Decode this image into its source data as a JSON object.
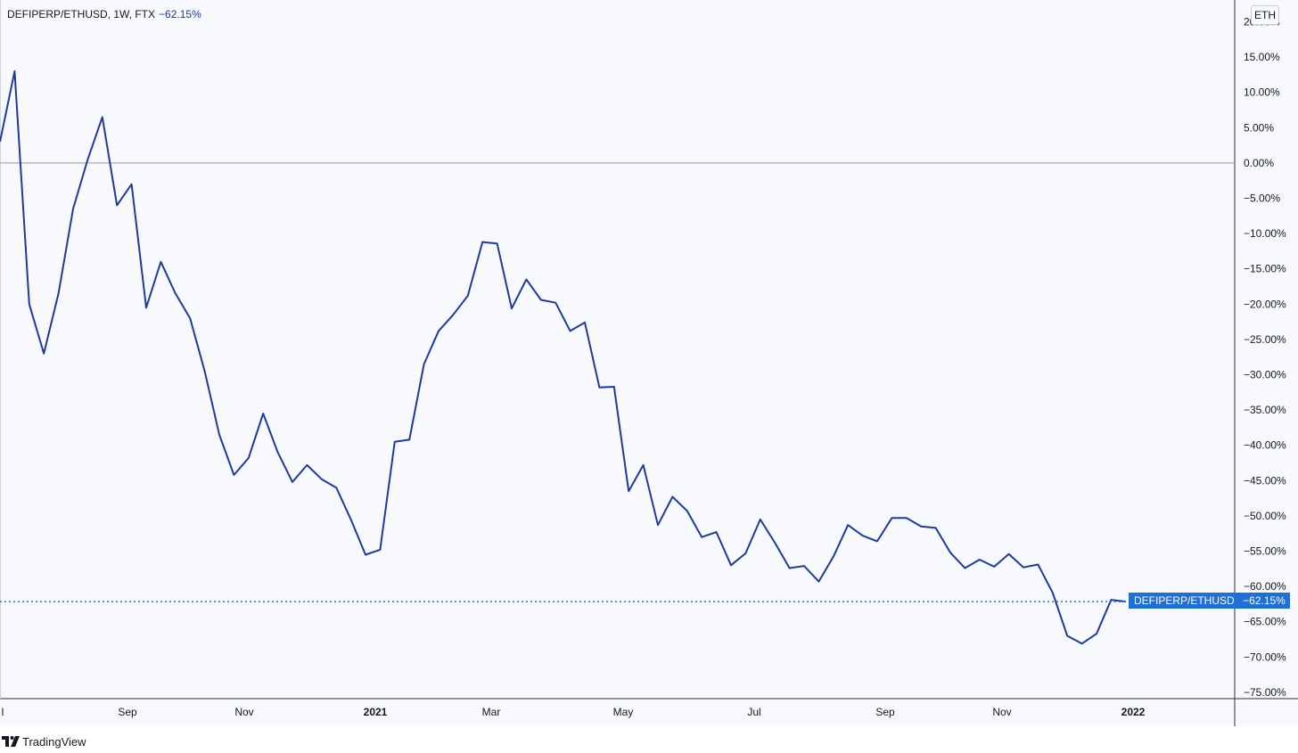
{
  "header": {
    "symbol_text": "DEFIPERP/ETHUSD, 1W, FTX",
    "change_text": "−62.15%"
  },
  "scale_badge": "ETH",
  "price_tag": {
    "name": "DEFIPERP/ETHUSD",
    "value": "−62.15%",
    "color": "#1f6fd6"
  },
  "footer": {
    "brand": "TradingView"
  },
  "chart_data": {
    "type": "line",
    "line_color": "#1e3a9c",
    "ylim": [
      -77,
      22
    ],
    "y_ticks": [
      20,
      15,
      10,
      5,
      0,
      -5,
      -10,
      -15,
      -20,
      -25,
      -30,
      -35,
      -40,
      -45,
      -50,
      -55,
      -60,
      -65,
      -70,
      -75
    ],
    "y_tick_labels": [
      "20.00%",
      "15.00%",
      "10.00%",
      "5.00%",
      "0.00%",
      "−5.00%",
      "−10.00%",
      "−15.00%",
      "−20.00%",
      "−25.00%",
      "−30.00%",
      "−35.00%",
      "−40.00%",
      "−45.00%",
      "−50.00%",
      "−55.00%",
      "−60.00%",
      "−65.00%",
      "−70.00%",
      "−75.00%"
    ],
    "x_tick_labels": [
      "l",
      "Sep",
      "Nov",
      "2021",
      "Mar",
      "May",
      "Jul",
      "Sep",
      "Nov",
      "2022"
    ],
    "x_tick_bold": [
      false,
      false,
      false,
      true,
      false,
      false,
      false,
      false,
      false,
      true
    ],
    "zero_line": 0,
    "last_value": -62.15,
    "values": [
      3,
      13,
      -20,
      -27,
      -18.5,
      -6.5,
      0.5,
      6.5,
      -6,
      -3,
      -20.5,
      -14,
      -18.5,
      -22,
      -29.5,
      -38.5,
      -44.2,
      -41.8,
      -35.5,
      -41,
      -45.2,
      -42.8,
      -44.8,
      -46,
      -50.5,
      -55.5,
      -54.8,
      -39.5,
      -39.2,
      -28.5,
      -23.8,
      -21.5,
      -18.8,
      -11.2,
      -11.4,
      -20.6,
      -16.5,
      -19.4,
      -19.8,
      -23.8,
      -22.6,
      -31.8,
      -31.7,
      -46.5,
      -42.8,
      -51.3,
      -47.3,
      -49.3,
      -53,
      -52.3,
      -57,
      -55.3,
      -50.5,
      -53.8,
      -57.4,
      -57.1,
      -59.3,
      -55.8,
      -51.3,
      -52.8,
      -53.6,
      -50.3,
      -50.3,
      -51.5,
      -51.7,
      -55.2,
      -57.4,
      -56.2,
      -57.2,
      -55.4,
      -57.3,
      -56.9,
      -60.9,
      -67,
      -68.1,
      -66.7,
      -61.9,
      -62.15
    ]
  }
}
